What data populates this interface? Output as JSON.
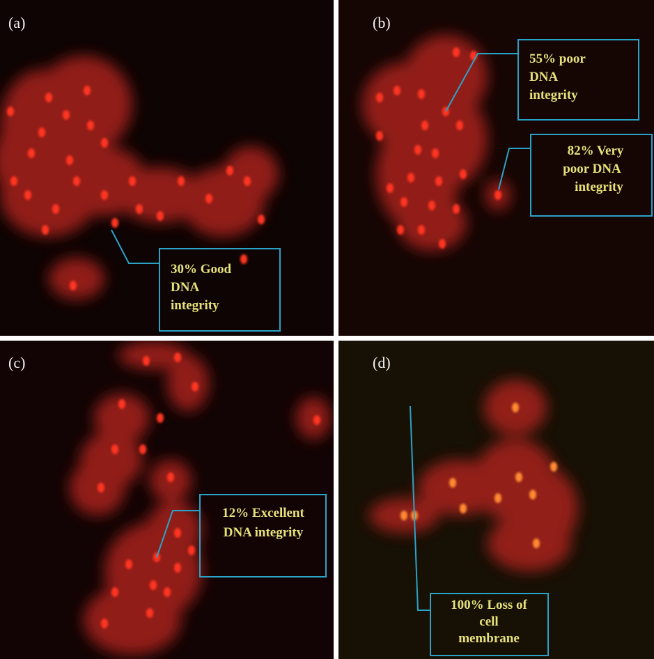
{
  "panels": [
    {
      "label": "(a)",
      "annotations": [
        {
          "lines": [
            "30% Good",
            "DNA",
            "integrity"
          ]
        }
      ]
    },
    {
      "label": "(b)",
      "annotations": [
        {
          "lines": [
            "55% poor",
            "DNA",
            "integrity"
          ]
        },
        {
          "lines": [
            "82% Very",
            "poor DNA",
            "integrity"
          ]
        }
      ]
    },
    {
      "label": "(c)",
      "annotations": [
        {
          "lines": [
            "12% Excellent",
            "DNA integrity"
          ]
        }
      ]
    },
    {
      "label": "(d)",
      "annotations": [
        {
          "lines": [
            "100% Loss of",
            "cell",
            "membrane"
          ]
        }
      ]
    }
  ]
}
